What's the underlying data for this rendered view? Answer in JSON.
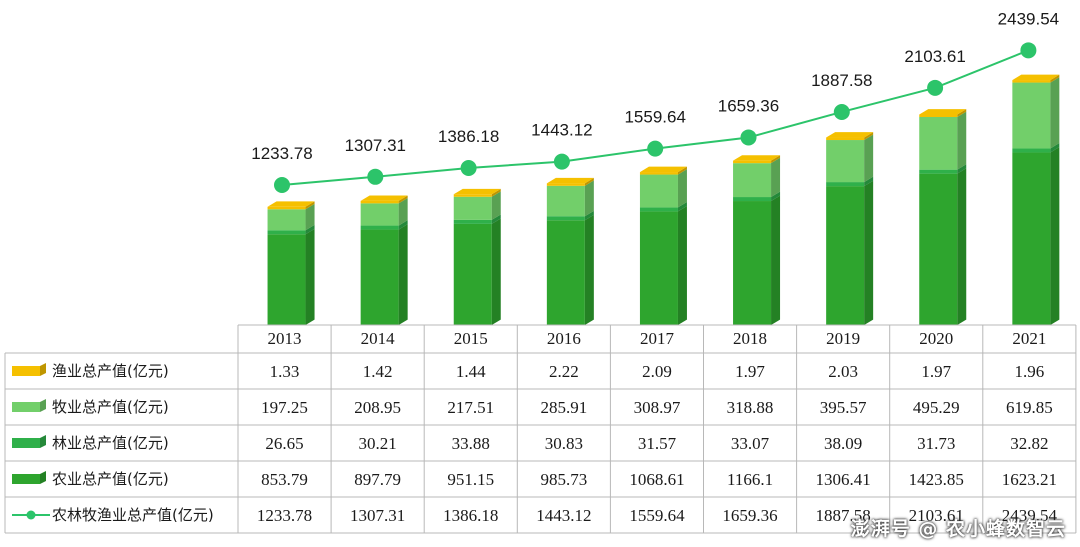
{
  "chart_data": {
    "type": "bar",
    "categories": [
      "2013",
      "2014",
      "2015",
      "2016",
      "2017",
      "2018",
      "2019",
      "2020",
      "2021"
    ],
    "series": [
      {
        "name": "渔业总产值(亿元)",
        "color": "#f5c000",
        "values": [
          1.33,
          1.42,
          1.44,
          2.22,
          2.09,
          1.97,
          2.03,
          1.97,
          1.96
        ],
        "labels": [
          "1.33",
          "1.42",
          "1.44",
          "2.22",
          "2.09",
          "1.97",
          "2.03",
          "1.97",
          "1.96"
        ]
      },
      {
        "name": "牧业总产值(亿元)",
        "color": "#72cf6a",
        "values": [
          197.25,
          208.95,
          217.51,
          285.91,
          308.97,
          318.88,
          395.57,
          495.29,
          619.85
        ],
        "labels": [
          "197.25",
          "208.95",
          "217.51",
          "285.91",
          "308.97",
          "318.88",
          "395.57",
          "495.29",
          "619.85"
        ]
      },
      {
        "name": "林业总产值(亿元)",
        "color": "#2fb04a",
        "values": [
          26.65,
          30.21,
          33.88,
          30.83,
          31.57,
          33.07,
          38.09,
          31.73,
          32.82
        ],
        "labels": [
          "26.65",
          "30.21",
          "33.88",
          "30.83",
          "31.57",
          "33.07",
          "38.09",
          "31.73",
          "32.82"
        ]
      },
      {
        "name": "农业总产值(亿元)",
        "color": "#2ea52e",
        "values": [
          853.79,
          897.79,
          951.15,
          985.73,
          1068.61,
          1166.1,
          1306.41,
          1423.85,
          1623.21
        ],
        "labels": [
          "853.79",
          "897.79",
          "951.15",
          "985.73",
          "1068.61",
          "1166.1",
          "1306.41",
          "1423.85",
          "1623.21"
        ]
      }
    ],
    "total": {
      "name": "农林牧渔业总产值(亿元)",
      "type": "line",
      "color": "#2cc46a",
      "values": [
        1233.78,
        1307.31,
        1386.18,
        1443.12,
        1559.64,
        1659.36,
        1887.58,
        2103.61,
        2439.54
      ],
      "labels": [
        "1233.78",
        "1307.31",
        "1386.18",
        "1443.12",
        "1559.64",
        "1659.36",
        "1887.58",
        "2103.61",
        "2439.54"
      ]
    },
    "stacked": true,
    "data_table": true
  },
  "watermark": "澎湃号 @ 农小蜂数智云"
}
